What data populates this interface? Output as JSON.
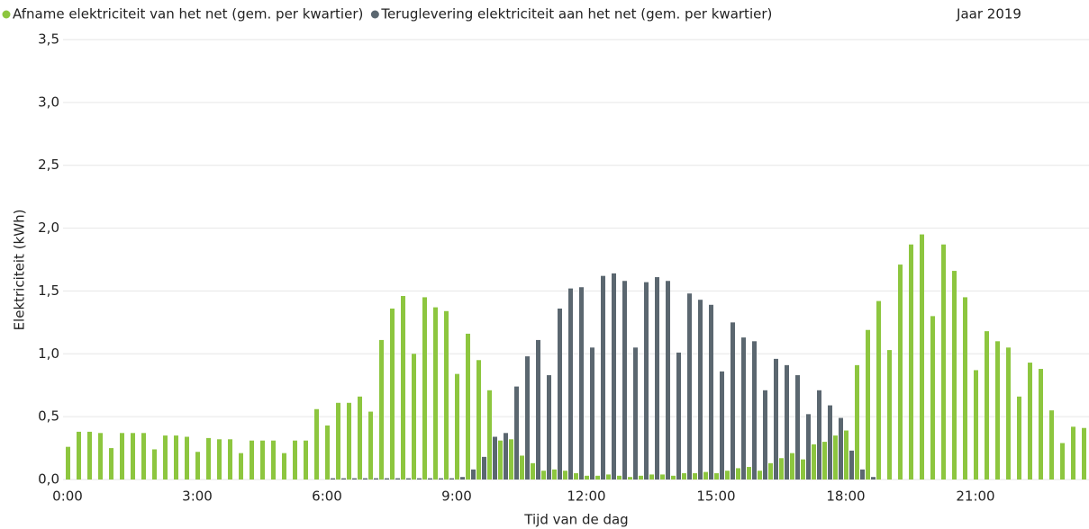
{
  "chart_data": {
    "type": "bar",
    "annotation": "Jaar 2019",
    "xlabel": "Tijd van de dag",
    "ylabel": "Elektriciteit (kWh)",
    "categories": [
      "0:00",
      null,
      null,
      null,
      null,
      null,
      null,
      null,
      null,
      null,
      null,
      null,
      "3:00",
      null,
      null,
      null,
      null,
      null,
      null,
      null,
      null,
      null,
      null,
      null,
      "6:00",
      null,
      null,
      null,
      null,
      null,
      null,
      null,
      null,
      null,
      null,
      null,
      "9:00",
      null,
      null,
      null,
      null,
      null,
      null,
      null,
      null,
      null,
      null,
      null,
      "12:00",
      null,
      null,
      null,
      null,
      null,
      null,
      null,
      null,
      null,
      null,
      null,
      "15:00",
      null,
      null,
      null,
      null,
      null,
      null,
      null,
      null,
      null,
      null,
      null,
      "18:00",
      null,
      null,
      null,
      null,
      null,
      null,
      null,
      null,
      null,
      null,
      null,
      "21:00",
      null,
      null,
      null,
      null,
      null,
      null,
      null,
      null,
      null,
      null
    ],
    "series": [
      {
        "name": "Afname elektriciteit van het net (gem. per kwartier)",
        "color": "#8dc63f",
        "values": [
          0.26,
          0.38,
          0.38,
          0.37,
          0.25,
          0.37,
          0.37,
          0.37,
          0.24,
          0.35,
          0.35,
          0.34,
          0.22,
          0.33,
          0.32,
          0.32,
          0.21,
          0.31,
          0.31,
          0.31,
          0.21,
          0.31,
          0.31,
          0.56,
          0.43,
          0.61,
          0.61,
          0.66,
          0.54,
          1.11,
          1.36,
          1.46,
          1.0,
          1.45,
          1.37,
          1.34,
          0.84,
          1.16,
          0.95,
          0.71,
          0.31,
          0.32,
          0.19,
          0.13,
          0.07,
          0.08,
          0.07,
          0.05,
          0.03,
          0.03,
          0.04,
          0.03,
          0.02,
          0.03,
          0.04,
          0.04,
          0.03,
          0.05,
          0.05,
          0.06,
          0.05,
          0.07,
          0.09,
          0.1,
          0.07,
          0.13,
          0.17,
          0.21,
          0.16,
          0.28,
          0.3,
          0.35,
          0.39,
          0.91,
          1.19,
          1.42,
          1.03,
          1.71,
          1.87,
          1.95,
          1.3,
          1.87,
          1.66,
          1.45,
          0.87,
          1.18,
          1.1,
          1.05,
          0.66,
          0.93,
          0.88,
          0.55,
          0.29,
          0.42,
          0.41
        ]
      },
      {
        "name": "Teruglevering elektriciteit aan het net (gem. per kwartier)",
        "color": "#5b6770",
        "values": [
          0,
          0,
          0,
          0,
          0,
          0,
          0,
          0,
          0,
          0,
          0,
          0,
          0,
          0,
          0,
          0,
          0,
          0,
          0,
          0,
          0,
          0,
          0,
          0,
          0.01,
          0.01,
          0.01,
          0.01,
          0.01,
          0.01,
          0.01,
          0.01,
          0.01,
          0.01,
          0.01,
          0.01,
          0.02,
          0.08,
          0.18,
          0.34,
          0.37,
          0.74,
          0.98,
          1.11,
          0.83,
          1.36,
          1.52,
          1.53,
          1.05,
          1.62,
          1.64,
          1.58,
          1.05,
          1.57,
          1.61,
          1.58,
          1.01,
          1.48,
          1.43,
          1.39,
          0.86,
          1.25,
          1.13,
          1.1,
          0.71,
          0.96,
          0.91,
          0.83,
          0.52,
          0.71,
          0.59,
          0.49,
          0.23,
          0.08,
          0.02,
          0,
          0,
          0,
          0,
          0,
          0,
          0,
          0,
          0,
          0,
          0,
          0,
          0,
          0,
          0,
          0,
          0,
          0,
          0,
          0
        ]
      }
    ],
    "ylim": [
      0,
      3.5
    ],
    "yticks": [
      {
        "value": 0,
        "label": "0,0"
      },
      {
        "value": 0.5,
        "label": "0,5"
      },
      {
        "value": 1,
        "label": "1,0"
      },
      {
        "value": 1.5,
        "label": "1,5"
      },
      {
        "value": 2,
        "label": "2,0"
      },
      {
        "value": 2.5,
        "label": "2,5"
      },
      {
        "value": 3,
        "label": "3,0"
      },
      {
        "value": 3.5,
        "label": "3,5"
      }
    ],
    "grid": true
  }
}
